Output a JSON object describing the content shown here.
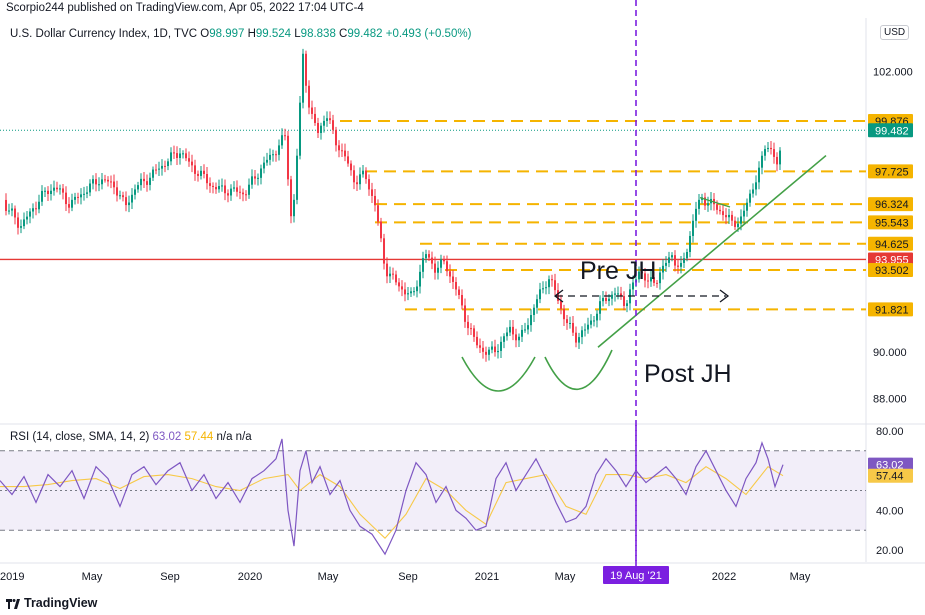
{
  "header": {
    "published_text": "Scorpio244 published on TradingView.com, Apr 05, 2022 17:04 UTC-4"
  },
  "footer": {
    "logo_text": "TradingView"
  },
  "chart_data": {
    "type": "candlestick",
    "title": "U.S. Dollar Currency Index, 1D, TVC",
    "ohlc_legend": {
      "o_label": "O",
      "open": "98.997",
      "h_label": "H",
      "high": "99.524",
      "l_label": "L",
      "low": "98.838",
      "c_label": "C",
      "close": "99.482",
      "change": "+0.493 (+0.50%)"
    },
    "currency": "USD",
    "y_ticks": [
      "88.000",
      "90.000",
      "102.000"
    ],
    "y_range": [
      87.0,
      104.2
    ],
    "x_ticks": [
      "2019",
      "May",
      "Sep",
      "2020",
      "May",
      "Sep",
      "2021",
      "May",
      "2022",
      "May"
    ],
    "crosshair_date": "19 Aug '21",
    "current_price": "99.482",
    "level_labels": [
      "99.876",
      "97.725",
      "96.324",
      "95.543",
      "94.625",
      "93.955",
      "93.502",
      "91.821"
    ],
    "levels": [
      99.876,
      97.725,
      96.324,
      95.543,
      94.625,
      93.502,
      91.821
    ],
    "red_level": 93.955,
    "annotations": {
      "pre": "Pre JH",
      "post": "Post JH"
    },
    "price_path": [
      [
        0,
        96.5
      ],
      [
        10,
        96.0
      ],
      [
        20,
        95.4
      ],
      [
        30,
        95.9
      ],
      [
        40,
        96.6
      ],
      [
        55,
        97.1
      ],
      [
        70,
        96.3
      ],
      [
        85,
        96.9
      ],
      [
        100,
        97.4
      ],
      [
        115,
        97.1
      ],
      [
        125,
        96.2
      ],
      [
        135,
        97.0
      ],
      [
        150,
        97.5
      ],
      [
        165,
        98.1
      ],
      [
        180,
        98.6
      ],
      [
        190,
        98.0
      ],
      [
        200,
        97.6
      ],
      [
        215,
        97.0
      ],
      [
        230,
        96.9
      ],
      [
        245,
        96.8
      ],
      [
        260,
        97.8
      ],
      [
        275,
        98.6
      ],
      [
        285,
        99.2
      ],
      [
        292,
        95.3
      ],
      [
        298,
        99.0
      ],
      [
        303,
        102.7
      ],
      [
        310,
        100.2
      ],
      [
        318,
        99.4
      ],
      [
        326,
        100.2
      ],
      [
        335,
        99.1
      ],
      [
        345,
        98.3
      ],
      [
        355,
        97.3
      ],
      [
        365,
        97.6
      ],
      [
        375,
        96.3
      ],
      [
        385,
        93.6
      ],
      [
        395,
        93.0
      ],
      [
        405,
        92.6
      ],
      [
        412,
        92.3
      ],
      [
        425,
        94.2
      ],
      [
        435,
        93.6
      ],
      [
        445,
        93.8
      ],
      [
        455,
        92.8
      ],
      [
        465,
        91.5
      ],
      [
        475,
        90.4
      ],
      [
        488,
        89.9
      ],
      [
        500,
        90.3
      ],
      [
        510,
        91.0
      ],
      [
        520,
        90.5
      ],
      [
        530,
        91.5
      ],
      [
        540,
        92.5
      ],
      [
        548,
        93.2
      ],
      [
        555,
        92.6
      ],
      [
        565,
        91.4
      ],
      [
        575,
        90.6
      ],
      [
        585,
        90.9
      ],
      [
        595,
        91.6
      ],
      [
        605,
        92.3
      ],
      [
        615,
        92.5
      ],
      [
        625,
        92.1
      ],
      [
        633,
        92.8
      ],
      [
        640,
        93.6
      ],
      [
        648,
        92.9
      ],
      [
        656,
        93.1
      ],
      [
        665,
        93.7
      ],
      [
        672,
        94.2
      ],
      [
        680,
        93.4
      ],
      [
        688,
        94.6
      ],
      [
        695,
        96.0
      ],
      [
        702,
        96.6
      ],
      [
        712,
        96.3
      ],
      [
        722,
        96.0
      ],
      [
        732,
        95.5
      ],
      [
        742,
        95.7
      ],
      [
        752,
        97.0
      ],
      [
        760,
        97.8
      ],
      [
        766,
        99.0
      ],
      [
        772,
        98.6
      ],
      [
        778,
        97.8
      ],
      [
        783,
        99.48
      ]
    ],
    "rsi": {
      "label": "RSI (14, close, SMA, 14, 2)",
      "rsi_value": "63.02",
      "sma_value": "57.44",
      "extra": "n/a n/a",
      "y_ticks": [
        "80.00",
        "60.00",
        "40.00",
        "20.00"
      ],
      "y_range": [
        14,
        83
      ],
      "overbought": 70,
      "oversold": 30,
      "middle": 50,
      "rsi_path": [
        [
          0,
          55
        ],
        [
          12,
          48
        ],
        [
          24,
          57
        ],
        [
          36,
          44
        ],
        [
          48,
          58
        ],
        [
          60,
          52
        ],
        [
          72,
          60
        ],
        [
          84,
          46
        ],
        [
          96,
          62
        ],
        [
          108,
          56
        ],
        [
          120,
          42
        ],
        [
          132,
          58
        ],
        [
          144,
          62
        ],
        [
          156,
          53
        ],
        [
          168,
          60
        ],
        [
          180,
          64
        ],
        [
          192,
          50
        ],
        [
          204,
          58
        ],
        [
          216,
          46
        ],
        [
          228,
          54
        ],
        [
          240,
          44
        ],
        [
          252,
          56
        ],
        [
          264,
          60
        ],
        [
          276,
          66
        ],
        [
          282,
          76
        ],
        [
          288,
          40
        ],
        [
          294,
          22
        ],
        [
          300,
          60
        ],
        [
          306,
          70
        ],
        [
          312,
          54
        ],
        [
          320,
          62
        ],
        [
          330,
          48
        ],
        [
          340,
          55
        ],
        [
          350,
          40
        ],
        [
          360,
          32
        ],
        [
          372,
          28
        ],
        [
          385,
          18
        ],
        [
          396,
          30
        ],
        [
          406,
          50
        ],
        [
          416,
          64
        ],
        [
          426,
          58
        ],
        [
          436,
          44
        ],
        [
          446,
          52
        ],
        [
          456,
          40
        ],
        [
          466,
          36
        ],
        [
          476,
          30
        ],
        [
          486,
          32
        ],
        [
          496,
          56
        ],
        [
          506,
          64
        ],
        [
          516,
          50
        ],
        [
          526,
          58
        ],
        [
          536,
          66
        ],
        [
          546,
          56
        ],
        [
          556,
          44
        ],
        [
          566,
          34
        ],
        [
          576,
          36
        ],
        [
          586,
          42
        ],
        [
          596,
          58
        ],
        [
          606,
          66
        ],
        [
          616,
          60
        ],
        [
          626,
          52
        ],
        [
          636,
          60
        ],
        [
          646,
          54
        ],
        [
          656,
          58
        ],
        [
          666,
          62
        ],
        [
          676,
          56
        ],
        [
          686,
          48
        ],
        [
          696,
          62
        ],
        [
          706,
          70
        ],
        [
          716,
          60
        ],
        [
          726,
          50
        ],
        [
          736,
          42
        ],
        [
          746,
          56
        ],
        [
          756,
          64
        ],
        [
          762,
          74
        ],
        [
          768,
          66
        ],
        [
          775,
          52
        ],
        [
          783,
          63
        ]
      ],
      "sma_path": [
        [
          0,
          52
        ],
        [
          24,
          52
        ],
        [
          48,
          53
        ],
        [
          72,
          55
        ],
        [
          96,
          56
        ],
        [
          120,
          51
        ],
        [
          144,
          57
        ],
        [
          168,
          58
        ],
        [
          192,
          56
        ],
        [
          216,
          52
        ],
        [
          240,
          50
        ],
        [
          264,
          56
        ],
        [
          288,
          58
        ],
        [
          300,
          50
        ],
        [
          320,
          58
        ],
        [
          340,
          52
        ],
        [
          360,
          38
        ],
        [
          385,
          26
        ],
        [
          406,
          38
        ],
        [
          426,
          56
        ],
        [
          446,
          50
        ],
        [
          466,
          40
        ],
        [
          486,
          33
        ],
        [
          506,
          54
        ],
        [
          526,
          56
        ],
        [
          546,
          58
        ],
        [
          566,
          42
        ],
        [
          586,
          38
        ],
        [
          606,
          58
        ],
        [
          626,
          58
        ],
        [
          646,
          56
        ],
        [
          666,
          58
        ],
        [
          686,
          54
        ],
        [
          706,
          62
        ],
        [
          726,
          56
        ],
        [
          746,
          48
        ],
        [
          768,
          62
        ],
        [
          783,
          57.44
        ]
      ]
    }
  }
}
